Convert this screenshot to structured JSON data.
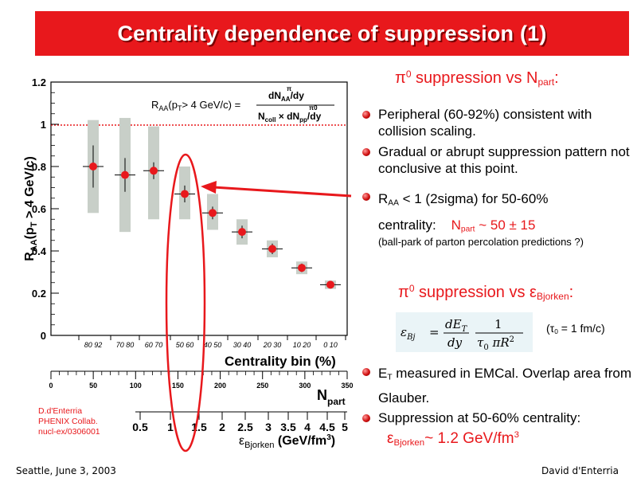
{
  "title": "Centrality dependence of suppression (1)",
  "plot": {
    "y_axis_label": "RAA(pT > 4 GeV/c)",
    "y_ticks": [
      "0",
      "0.2",
      "0.4",
      "0.6",
      "0.8",
      "1",
      "1.2"
    ],
    "formula_lhs": "RAA(pT> 4 GeV/c) =",
    "formula_num": "dNπ0AA/dy",
    "formula_den": "Ncoll × dNπ0pp/dy",
    "centrality_ticks": [
      "80 92",
      "70 80",
      "60 70",
      "50 60",
      "40 50",
      "30 40",
      "20 30",
      "10 20",
      "0 10"
    ],
    "centrality_label": "Centrality bin (%)",
    "npart_ticks": [
      "0",
      "50",
      "100",
      "150",
      "200",
      "250",
      "300",
      "350"
    ],
    "npart_label": "Npart",
    "eps_ticks": [
      "0.5",
      "1",
      "1.5",
      "2",
      "2.5",
      "3",
      "3.5",
      "4",
      "4.5",
      "5"
    ],
    "eps_label": "εBjorken (GeV/fm3)"
  },
  "chart_data": {
    "type": "scatter",
    "xlabel": "Centrality bin (%)",
    "ylabel": "RAA(pT > 4 GeV/c)",
    "categories": [
      "80 92",
      "70 80",
      "60 70",
      "50 60",
      "40 50",
      "30 40",
      "20 30",
      "10 20",
      "0 10"
    ],
    "series": [
      {
        "values": [
          0.8,
          0.76,
          0.78,
          0.67,
          0.58,
          0.49,
          0.41,
          0.32,
          0.24
        ],
        "err_stat": [
          0.1,
          0.08,
          0.04,
          0.04,
          0.03,
          0.03,
          0.025,
          0.02,
          0.01
        ],
        "sys_low": [
          0.58,
          0.49,
          0.55,
          0.55,
          0.5,
          0.43,
          0.37,
          0.29,
          0.22
        ],
        "sys_high": [
          1.02,
          1.03,
          0.99,
          0.8,
          0.67,
          0.55,
          0.45,
          0.35,
          0.26
        ]
      }
    ],
    "reference_line": 1.0,
    "ylim": [
      0,
      1.2
    ],
    "colors": {
      "point": "#e8181c",
      "sys_band": "#c8cfc8",
      "reference": "#e8181c"
    }
  },
  "credit": [
    "D.d'Enterria",
    "PHENIX Collab.",
    "nucl-ex/0306001"
  ],
  "right": {
    "heading1": "π0 suppression vs Npart:",
    "b1": "Peripheral (60-92%) consistent with collision scaling.",
    "b2": "Gradual or abrupt suppression pattern not conclusive at this point.",
    "b3_pre": "RAA < 1 (2sigma) for 50-60% centrality:",
    "b3_highlight": "Npart ~ 50 ± 15",
    "b3_note": "(ball-park of parton percolation predictions ?)",
    "heading2": "π0 suppression vs εBjorken:",
    "eq": "εBj = dET/dy · 1/(τ0 πR2)",
    "tau": "(τ0 = 1 fm/c)",
    "b4": "ET measured in EMCal. Overlap area from Glauber.",
    "b5": "Suppression at 50-60% centrality:",
    "b5_value": "εBjorken ~ 1.2 GeV/fm3"
  },
  "footer": {
    "left": "Seattle, June  3, 2003",
    "right": "David d'Enterria"
  }
}
